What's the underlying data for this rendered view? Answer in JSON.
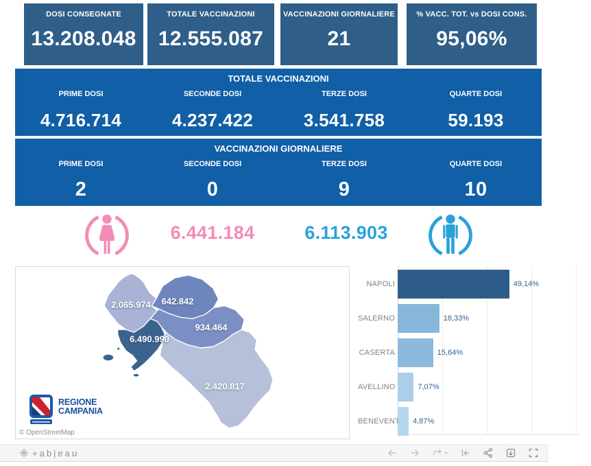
{
  "kpi_boxes": [
    {
      "label": "DOSI  CONSEGNATE",
      "value": "13.208.048"
    },
    {
      "label": "TOTALE VACCINAZIONI",
      "value": "12.555.087"
    },
    {
      "label": "VACCINAZIONI GIORNALIERE",
      "value": "21"
    },
    {
      "label": "% VACC. TOT. vs DOSI CONS.",
      "value": "95,06%"
    }
  ],
  "totale_band": {
    "title": "TOTALE VACCINAZIONI",
    "columns": [
      {
        "label": "PRIME DOSI",
        "value": "4.716.714"
      },
      {
        "label": "SECONDE DOSI",
        "value": "4.237.422"
      },
      {
        "label": "TERZE DOSI",
        "value": "3.541.758"
      },
      {
        "label": "QUARTE DOSI",
        "value": "59.193"
      }
    ]
  },
  "giornaliere_band": {
    "title": "VACCINAZIONI GIORNALIERE",
    "columns": [
      {
        "label": "PRIME DOSI",
        "value": "2"
      },
      {
        "label": "SECONDE DOSI",
        "value": "0"
      },
      {
        "label": "TERZE DOSI",
        "value": "9"
      },
      {
        "label": "QUARTE DOSI",
        "value": "10"
      }
    ]
  },
  "gender": {
    "female_icon": "female-figure-in-ring",
    "male_icon": "male-figure-in-ring",
    "female_value": "6.441.184",
    "male_value": "6.113.903",
    "female_color": "#f28cb7",
    "male_color": "#29a2da"
  },
  "map": {
    "attribution": "© OpenStreetMap",
    "logo_line1": "REGIONE",
    "logo_line2": "CAMPANIA",
    "regions": [
      {
        "name": "Caserta",
        "value": "2.065.974",
        "color": "#a9b3d6"
      },
      {
        "name": "Benevento",
        "value": "642.842",
        "color": "#6f85bd"
      },
      {
        "name": "Avellino",
        "value": "934.464",
        "color": "#7b8fc4"
      },
      {
        "name": "Napoli",
        "value": "6.490.990",
        "color": "#3a6390"
      },
      {
        "name": "Salerno",
        "value": "2.420.817",
        "color": "#b6c0da"
      }
    ]
  },
  "chart_data": {
    "type": "bar",
    "orientation": "horizontal",
    "title": "",
    "xlabel": "",
    "ylabel": "",
    "categories": [
      "NAPOLI",
      "SALERNO",
      "CASERTA",
      "AVELLINO",
      "BENEVENTO"
    ],
    "values": [
      49.14,
      18.33,
      15.64,
      7.07,
      4.87
    ],
    "value_labels": [
      "49,14%",
      "18,33%",
      "15,64%",
      "7,07%",
      "4,87%"
    ],
    "bar_colors": [
      "#2e5c88",
      "#88b7dc",
      "#8cbade",
      "#a9cfe9",
      "#b5d7ee"
    ],
    "xlim": [
      0,
      80
    ],
    "gridline_step": 20,
    "grid": true,
    "legend": false
  },
  "toolbar": {
    "logo_text": "+ab|eau",
    "icons": [
      "undo",
      "redo",
      "replay",
      "revert",
      "share",
      "download",
      "fullscreen"
    ]
  },
  "colors": {
    "kpi_box": "#2f5e88",
    "band": "#115fa6"
  }
}
